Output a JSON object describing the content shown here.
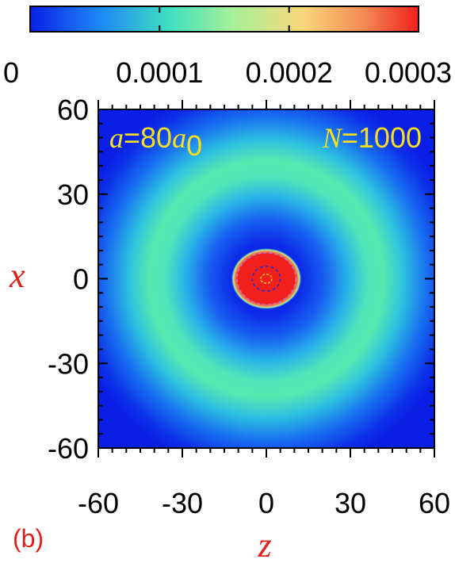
{
  "chart_data": {
    "type": "heatmap",
    "title": "",
    "xlabel": "z",
    "ylabel": "x",
    "xlim": [
      -60,
      60
    ],
    "ylim": [
      -60,
      60
    ],
    "x_ticks": [
      "-60",
      "-30",
      "0",
      "30",
      "60"
    ],
    "y_ticks": [
      "60",
      "30",
      "0",
      "-30",
      "-60"
    ],
    "colorbar": {
      "min": 0,
      "max": 0.0003,
      "ticks": [
        "0",
        "0.0001",
        "0.0002",
        "0.0003"
      ],
      "colormap": [
        "#0a1fe6",
        "#1e88f5",
        "#3fe0c0",
        "#a6f09a",
        "#f7d87a",
        "#f58a55",
        "#f2201c"
      ]
    },
    "annotations": {
      "scattering_length_prefix": "a",
      "scattering_length_value": "=80",
      "scattering_length_unit": "a",
      "scattering_length_sub": "0",
      "atom_count_var": "N",
      "atom_count_value": "=1000"
    },
    "panel_label": "(b)",
    "features": {
      "central_peak": {
        "z_radius": 10,
        "x_radius": 8,
        "density": 0.0003
      },
      "ring": {
        "radius": 35,
        "density": 0.00011
      },
      "background_density": 1e-05
    }
  }
}
